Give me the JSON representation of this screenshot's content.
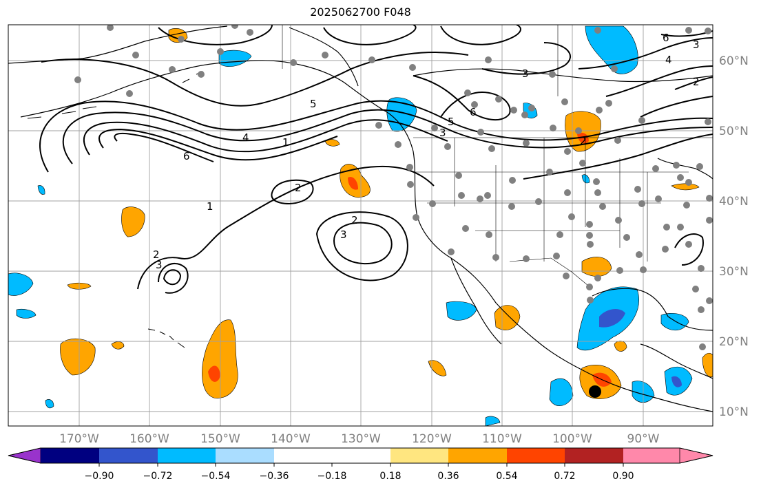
{
  "title": "2025062700 F048",
  "lat_labels": [
    "60°N",
    "50°N",
    "40°N",
    "30°N",
    "20°N",
    "10°N"
  ],
  "lon_labels": [
    "170°W",
    "160°W",
    "150°W",
    "140°W",
    "130°W",
    "120°W",
    "110°W",
    "100°W",
    "90°W"
  ],
  "colorbar": {
    "ticks": [
      "−0.90",
      "−0.72",
      "−0.54",
      "−0.36",
      "−0.18",
      "0.18",
      "0.36",
      "0.54",
      "0.72",
      "0.90"
    ],
    "colors": [
      "#9933cc",
      "#000080",
      "#3355cc",
      "#00bbff",
      "#aaddff",
      "#ffffff",
      "#ffe680",
      "#ffa500",
      "#ff4400",
      "#b22222",
      "#ff88aa"
    ]
  },
  "contour_labels": [
    "6",
    "5",
    "4",
    "1",
    "1",
    "2",
    "2",
    "3",
    "2",
    "3",
    "5",
    "6",
    "3",
    "3",
    "6",
    "4",
    "2",
    "3",
    "2"
  ],
  "colors": {
    "land_outline": "#000000",
    "grid": "#a0a0a0",
    "station_dot": "#808080",
    "positive": "#ffa500",
    "positive_strong": "#ff4400",
    "negative": "#00bbff",
    "negative_strong": "#3355cc"
  }
}
